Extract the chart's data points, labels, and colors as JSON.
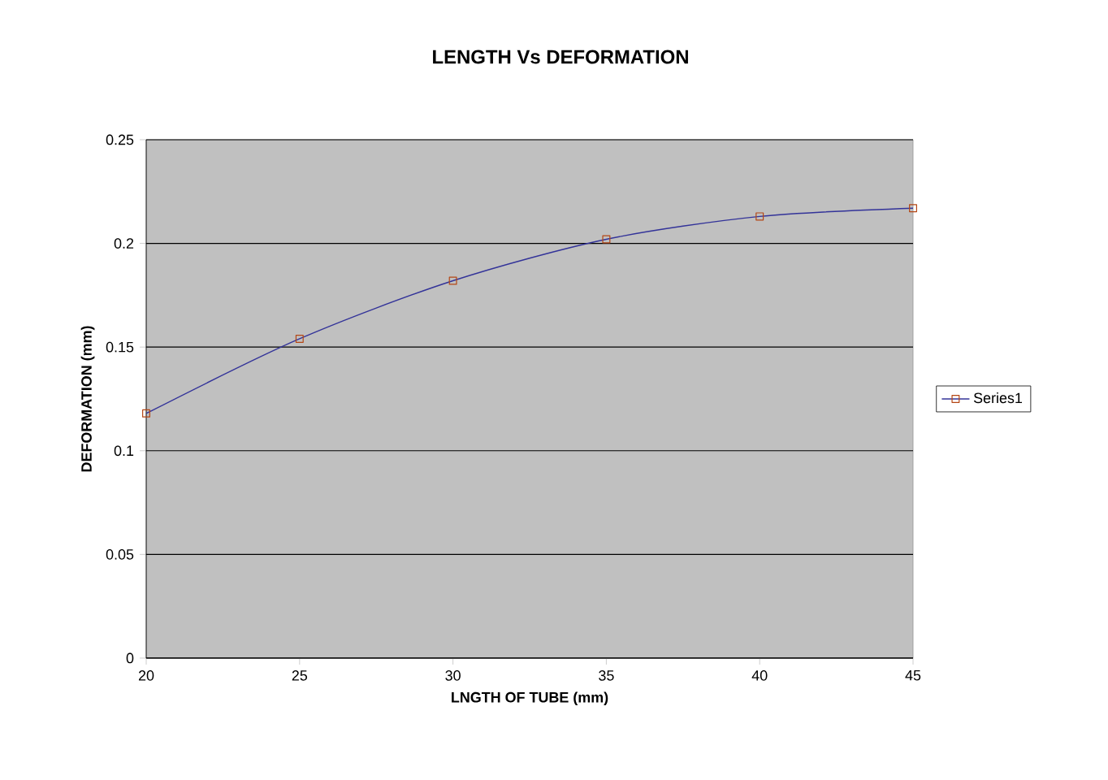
{
  "chart_data": {
    "type": "line",
    "title": "LENGTH Vs DEFORMATION",
    "xlabel": "LNGTH OF TUBE (mm)",
    "ylabel": "DEFORMATION (mm)",
    "x": [
      20,
      25,
      30,
      35,
      40,
      45
    ],
    "series": [
      {
        "name": "Series1",
        "color": "#333399",
        "values": [
          0.118,
          0.154,
          0.182,
          0.202,
          0.213,
          0.217
        ]
      }
    ],
    "xlim": [
      20,
      45
    ],
    "xticks": [
      20,
      25,
      30,
      35,
      40,
      45
    ],
    "ylim": [
      0,
      0.25
    ],
    "yticks": [
      0,
      0.05,
      0.1,
      0.15,
      0.2,
      0.25
    ],
    "grid": "y",
    "legend": "right",
    "marker": "square",
    "line_style": "solid"
  }
}
